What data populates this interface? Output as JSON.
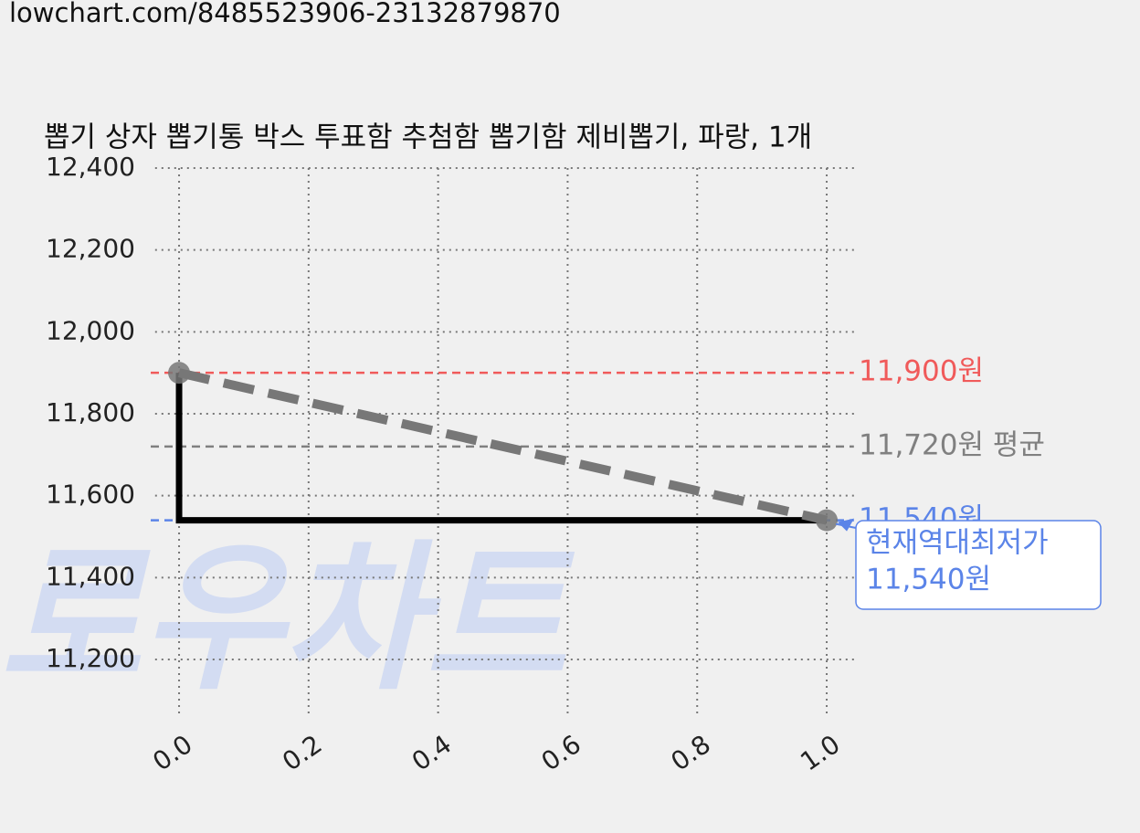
{
  "chart_data": {
    "type": "line",
    "url": "lowchart.com/8485523906-23132879870",
    "title": "뽑기 상자 뽑기통 박스 투표함 추첨함 뽑기함 제비뽑기, 파랑, 1개",
    "watermark": "로우차트",
    "xlim": [
      -0.037,
      1.042
    ],
    "ylim": [
      11060,
      12400
    ],
    "xticks": [
      {
        "value": 0,
        "label": "0.0"
      },
      {
        "value": 0.2,
        "label": "0.2"
      },
      {
        "value": 0.4,
        "label": "0.4"
      },
      {
        "value": 0.6,
        "label": "0.6"
      },
      {
        "value": 0.8,
        "label": "0.8"
      },
      {
        "value": 1,
        "label": "1.0"
      }
    ],
    "yticks": [
      {
        "value": 11200,
        "label": "11,200"
      },
      {
        "value": 11400,
        "label": "11,400"
      },
      {
        "value": 11600,
        "label": "11,600"
      },
      {
        "value": 11800,
        "label": "11,800"
      },
      {
        "value": 12000,
        "label": "12,000"
      },
      {
        "value": 12200,
        "label": "12,200"
      },
      {
        "value": 12400,
        "label": "12,400"
      }
    ],
    "grid": true,
    "series": [
      {
        "x": [
          0,
          1
        ],
        "values": [
          11900,
          11540
        ],
        "color": "#000000",
        "step": "pre"
      },
      {
        "x": [
          0,
          1
        ],
        "values": [
          11900,
          11540
        ],
        "color": "#777777",
        "dashed": true,
        "markers": true
      }
    ],
    "reference_lines": [
      {
        "value": 11900,
        "label": "11,900원",
        "color": "#f05a5a"
      },
      {
        "value": 11720,
        "label": "11,720원 평균",
        "color": "#808080"
      },
      {
        "value": 11540,
        "label": "11,540원",
        "color": "#5b84e8"
      }
    ],
    "annotation": {
      "x": 1,
      "value": 11540,
      "title": "현재역대최저가",
      "label": "11,540원",
      "color": "#5b84e8"
    }
  }
}
